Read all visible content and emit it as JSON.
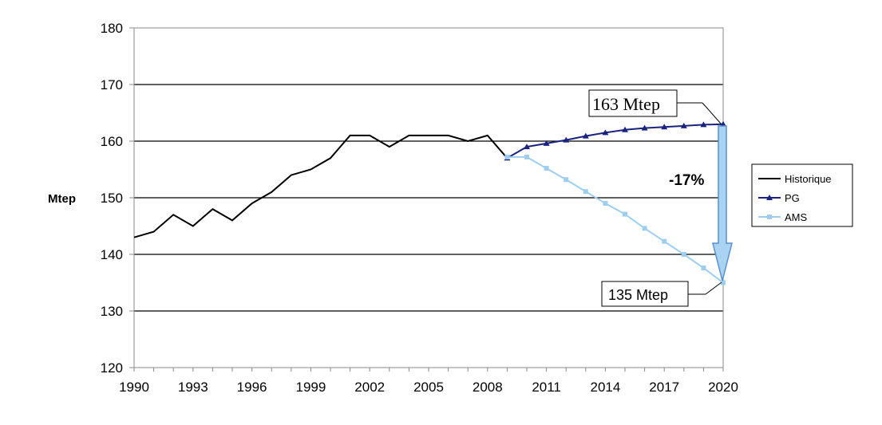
{
  "chart_data": {
    "type": "line",
    "xlabel": "",
    "ylabel": "Mtep",
    "xlim": [
      1990,
      2020
    ],
    "ylim": [
      120,
      180
    ],
    "x_ticks": [
      "1990",
      "1993",
      "1996",
      "1999",
      "2002",
      "2005",
      "2008",
      "2011",
      "2014",
      "2017",
      "2020"
    ],
    "y_ticks": [
      "120",
      "130",
      "140",
      "150",
      "160",
      "170",
      "180"
    ],
    "grid": "horizontal",
    "legend_position": "right",
    "series": [
      {
        "name": "Historique",
        "color": "#000000",
        "marker": "none",
        "x": [
          1990,
          1991,
          1992,
          1993,
          1994,
          1995,
          1996,
          1997,
          1998,
          1999,
          2000,
          2001,
          2002,
          2003,
          2004,
          2005,
          2006,
          2007,
          2008,
          2009
        ],
        "y": [
          143,
          144,
          147,
          145,
          148,
          146,
          149,
          151,
          154,
          155,
          157,
          161,
          161,
          159,
          161,
          161,
          161,
          160,
          161,
          157
        ]
      },
      {
        "name": "PG",
        "color": "#1a237e",
        "marker": "triangle",
        "x": [
          2009,
          2010,
          2011,
          2012,
          2013,
          2014,
          2015,
          2016,
          2017,
          2018,
          2019,
          2020
        ],
        "y": [
          157,
          159,
          159.6,
          160.2,
          160.9,
          161.5,
          162,
          162.3,
          162.5,
          162.7,
          162.9,
          163
        ]
      },
      {
        "name": "AMS",
        "color": "#9fcdee",
        "marker": "square",
        "x": [
          2009,
          2010,
          2011,
          2012,
          2013,
          2014,
          2015,
          2016,
          2017,
          2018,
          2019,
          2020
        ],
        "y": [
          157.2,
          157.2,
          155.2,
          153.2,
          151.1,
          149,
          147.1,
          144.6,
          142.3,
          140,
          137.6,
          135
        ]
      }
    ],
    "annotations": {
      "top_label": "163 Mtep",
      "bottom_label": "135 Mtep",
      "change_label": "-17%"
    }
  }
}
